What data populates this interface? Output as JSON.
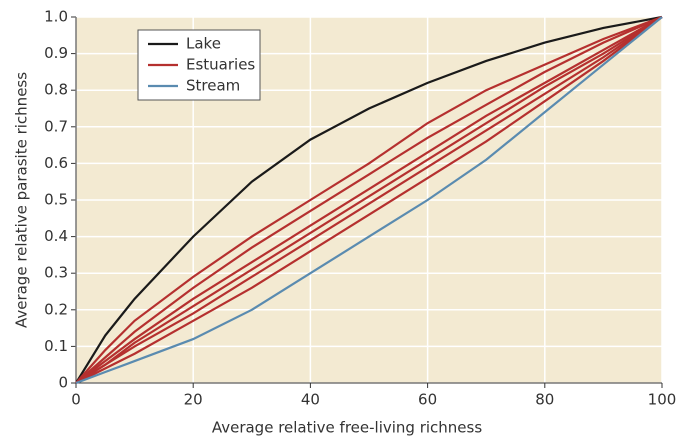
{
  "chart_data": {
    "type": "line",
    "xlabel": "Average relative free-living richness",
    "ylabel": "Average relative parasite richness",
    "x": [
      0,
      5,
      10,
      20,
      30,
      40,
      50,
      60,
      70,
      80,
      90,
      100
    ],
    "xlim": [
      0,
      100
    ],
    "xticks": [
      0,
      20,
      40,
      60,
      80,
      100
    ],
    "ylim": [
      0,
      1
    ],
    "yticks": [
      0,
      0.1,
      0.2,
      0.3,
      0.4,
      0.5,
      0.6,
      0.7,
      0.8,
      0.9,
      {
        "value": 1,
        "label": "1.0"
      }
    ],
    "grid": true,
    "legend": "upper left",
    "series": [
      {
        "name": "Lake",
        "color": "#1a1a1a",
        "values": [
          0,
          0.13,
          0.23,
          0.4,
          0.55,
          0.665,
          0.75,
          0.82,
          0.88,
          0.93,
          0.97,
          1
        ]
      },
      {
        "name": "Estuaries",
        "color": "#b5302f",
        "lines": [
          [
            0,
            0.09,
            0.17,
            0.29,
            0.4,
            0.5,
            0.6,
            0.71,
            0.8,
            0.87,
            0.94,
            1
          ],
          [
            0,
            0.07,
            0.14,
            0.26,
            0.37,
            0.47,
            0.57,
            0.67,
            0.76,
            0.85,
            0.93,
            1
          ],
          [
            0,
            0.06,
            0.12,
            0.23,
            0.33,
            0.43,
            0.53,
            0.63,
            0.73,
            0.82,
            0.91,
            1
          ],
          [
            0,
            0.05,
            0.11,
            0.21,
            0.31,
            0.41,
            0.51,
            0.61,
            0.71,
            0.81,
            0.9,
            1
          ],
          [
            0,
            0.05,
            0.1,
            0.19,
            0.29,
            0.39,
            0.49,
            0.59,
            0.69,
            0.79,
            0.89,
            1
          ],
          [
            0,
            0.04,
            0.08,
            0.17,
            0.26,
            0.36,
            0.46,
            0.56,
            0.66,
            0.77,
            0.88,
            1
          ]
        ]
      },
      {
        "name": "Stream",
        "color": "#5a8bb0",
        "values": [
          0,
          0.03,
          0.06,
          0.12,
          0.2,
          0.3,
          0.4,
          0.5,
          0.61,
          0.74,
          0.87,
          1
        ]
      }
    ]
  }
}
